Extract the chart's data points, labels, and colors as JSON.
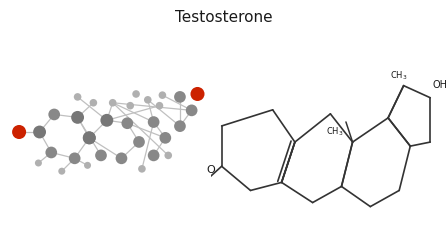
{
  "title": "Testosterone",
  "title_fontsize": 11,
  "bg_color": "#ffffff",
  "line_color": "#333333",
  "lw": 1.2
}
